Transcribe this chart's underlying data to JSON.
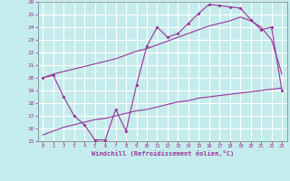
{
  "xlabel": "Windchill (Refroidissement éolien,°C)",
  "bg_color": "#c5ecec",
  "line_color": "#993399",
  "grid_color": "#ffffff",
  "xlim": [
    -0.5,
    23.5
  ],
  "ylim": [
    15,
    26
  ],
  "yticks": [
    15,
    16,
    17,
    18,
    19,
    20,
    21,
    22,
    23,
    24,
    25,
    26
  ],
  "xticks": [
    0,
    1,
    2,
    3,
    4,
    5,
    6,
    7,
    8,
    9,
    10,
    11,
    12,
    13,
    14,
    15,
    16,
    17,
    18,
    19,
    20,
    21,
    22,
    23
  ],
  "line1_x": [
    0,
    1,
    2,
    3,
    4,
    5,
    6,
    7,
    8,
    9,
    10,
    11,
    12,
    13,
    14,
    15,
    16,
    17,
    18,
    19,
    20,
    21,
    22,
    23
  ],
  "line1_y": [
    20.0,
    20.2,
    18.5,
    17.0,
    16.3,
    15.1,
    15.1,
    17.5,
    15.8,
    19.4,
    22.5,
    24.0,
    23.2,
    23.5,
    24.3,
    25.1,
    25.8,
    25.7,
    25.6,
    25.5,
    24.6,
    23.8,
    24.0,
    19.0
  ],
  "line2_x": [
    0,
    1,
    2,
    3,
    4,
    5,
    6,
    7,
    8,
    9,
    10,
    11,
    12,
    13,
    14,
    15,
    16,
    17,
    18,
    19,
    20,
    21,
    22,
    23
  ],
  "line2_y": [
    20.0,
    20.3,
    20.5,
    20.7,
    20.9,
    21.1,
    21.3,
    21.5,
    21.8,
    22.1,
    22.3,
    22.6,
    22.9,
    23.2,
    23.5,
    23.8,
    24.1,
    24.3,
    24.5,
    24.8,
    24.5,
    24.0,
    23.0,
    20.3
  ],
  "line3_x": [
    0,
    1,
    2,
    3,
    4,
    5,
    6,
    7,
    8,
    9,
    10,
    11,
    12,
    13,
    14,
    15,
    16,
    17,
    18,
    19,
    20,
    21,
    22,
    23
  ],
  "line3_y": [
    15.5,
    15.8,
    16.1,
    16.3,
    16.5,
    16.7,
    16.8,
    17.0,
    17.2,
    17.4,
    17.5,
    17.7,
    17.9,
    18.1,
    18.2,
    18.4,
    18.5,
    18.6,
    18.7,
    18.8,
    18.9,
    19.0,
    19.1,
    19.2
  ]
}
